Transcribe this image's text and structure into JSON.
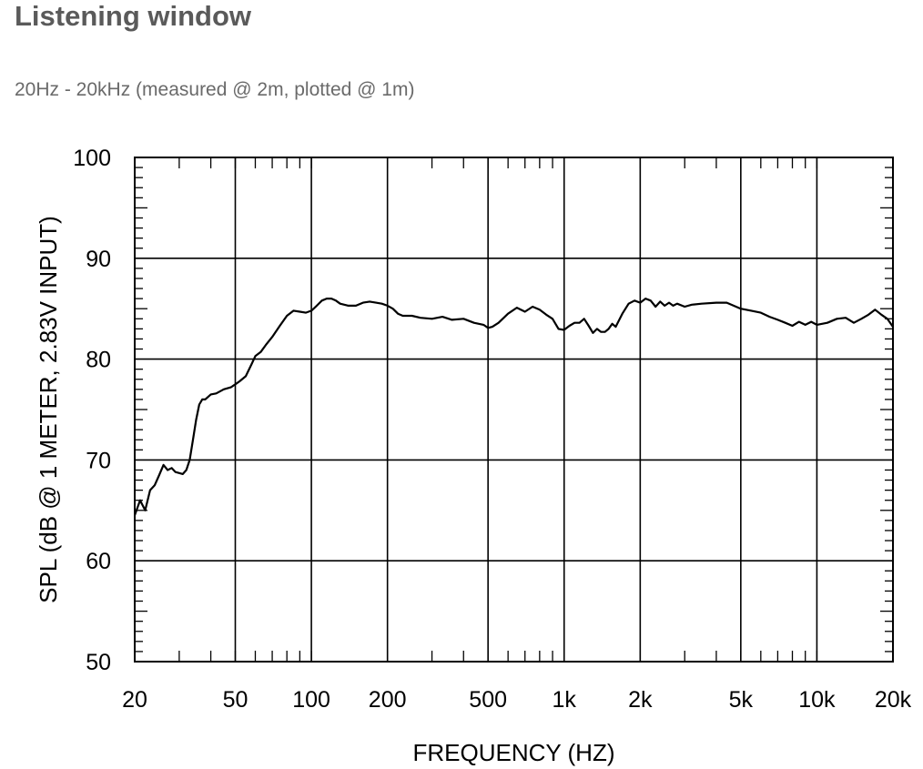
{
  "page": {
    "title": "Listening window",
    "subtitle": "20Hz - 20kHz (measured @ 2m, plotted @ 1m)"
  },
  "chart_data": {
    "type": "line",
    "title": "",
    "xlabel": "FREQUENCY  (HZ)",
    "ylabel": "SPL (dB @ 1 METER, 2.83V INPUT)",
    "x_scale": "log",
    "xlim": [
      20,
      20000
    ],
    "ylim": [
      50,
      100
    ],
    "grid": true,
    "line_color": "#000000",
    "x_ticks": [
      {
        "value": 20,
        "label": "20"
      },
      {
        "value": 50,
        "label": "50"
      },
      {
        "value": 100,
        "label": "100"
      },
      {
        "value": 200,
        "label": "200"
      },
      {
        "value": 500,
        "label": "500"
      },
      {
        "value": 1000,
        "label": "1k"
      },
      {
        "value": 2000,
        "label": "2k"
      },
      {
        "value": 5000,
        "label": "5k"
      },
      {
        "value": 10000,
        "label": "10k"
      },
      {
        "value": 20000,
        "label": "20k"
      }
    ],
    "y_ticks": [
      {
        "value": 50,
        "label": "50"
      },
      {
        "value": 60,
        "label": "60"
      },
      {
        "value": 70,
        "label": "70"
      },
      {
        "value": 80,
        "label": "80"
      },
      {
        "value": 90,
        "label": "90"
      },
      {
        "value": 100,
        "label": "100"
      }
    ],
    "series": [
      {
        "x": [
          20,
          21,
          22,
          23,
          24,
          25,
          26,
          27,
          28,
          29,
          30,
          31,
          32,
          33,
          34,
          35,
          36,
          37,
          38,
          40,
          42,
          45,
          48,
          50,
          52,
          55,
          58,
          60,
          63,
          66,
          70,
          75,
          80,
          85,
          90,
          95,
          100,
          105,
          110,
          115,
          120,
          125,
          130,
          140,
          150,
          160,
          170,
          180,
          190,
          200,
          210,
          220,
          230,
          250,
          270,
          300,
          330,
          360,
          400,
          440,
          480,
          500,
          520,
          550,
          600,
          650,
          700,
          750,
          800,
          850,
          900,
          950,
          1000,
          1050,
          1100,
          1150,
          1200,
          1250,
          1300,
          1350,
          1400,
          1450,
          1500,
          1550,
          1600,
          1700,
          1800,
          1900,
          2000,
          2100,
          2200,
          2300,
          2400,
          2500,
          2600,
          2700,
          2800,
          3000,
          3200,
          3500,
          4000,
          4400,
          5000,
          5500,
          6000,
          6500,
          7000,
          7500,
          8000,
          8500,
          9000,
          9500,
          10000,
          11000,
          12000,
          13000,
          14000,
          15000,
          16000,
          17000,
          18000,
          19000,
          20000
        ],
        "y": [
          64.5,
          66.0,
          65.0,
          67.0,
          67.5,
          68.5,
          69.5,
          69.0,
          69.2,
          68.8,
          68.7,
          68.6,
          69.0,
          70.0,
          72.0,
          74.0,
          75.5,
          76.0,
          76.0,
          76.5,
          76.6,
          77.0,
          77.2,
          77.5,
          77.8,
          78.3,
          79.5,
          80.3,
          80.7,
          81.4,
          82.2,
          83.3,
          84.3,
          84.8,
          84.7,
          84.6,
          84.8,
          85.3,
          85.8,
          86.0,
          86.0,
          85.8,
          85.5,
          85.3,
          85.3,
          85.6,
          85.7,
          85.6,
          85.5,
          85.3,
          85.0,
          84.5,
          84.3,
          84.3,
          84.1,
          84.0,
          84.2,
          83.9,
          84.0,
          83.6,
          83.4,
          83.1,
          83.2,
          83.6,
          84.5,
          85.1,
          84.7,
          85.2,
          84.9,
          84.4,
          84.0,
          83.0,
          82.9,
          83.3,
          83.6,
          83.6,
          84.0,
          83.3,
          82.6,
          83.0,
          82.7,
          82.7,
          83.0,
          83.5,
          83.2,
          84.5,
          85.5,
          85.8,
          85.6,
          86.0,
          85.8,
          85.2,
          85.7,
          85.3,
          85.6,
          85.3,
          85.5,
          85.2,
          85.4,
          85.5,
          85.6,
          85.6,
          85.0,
          84.8,
          84.6,
          84.2,
          83.9,
          83.6,
          83.3,
          83.7,
          83.4,
          83.7,
          83.4,
          83.6,
          84.0,
          84.1,
          83.6,
          84.0,
          84.4,
          84.9,
          84.4,
          84.0,
          83.2
        ]
      }
    ]
  }
}
